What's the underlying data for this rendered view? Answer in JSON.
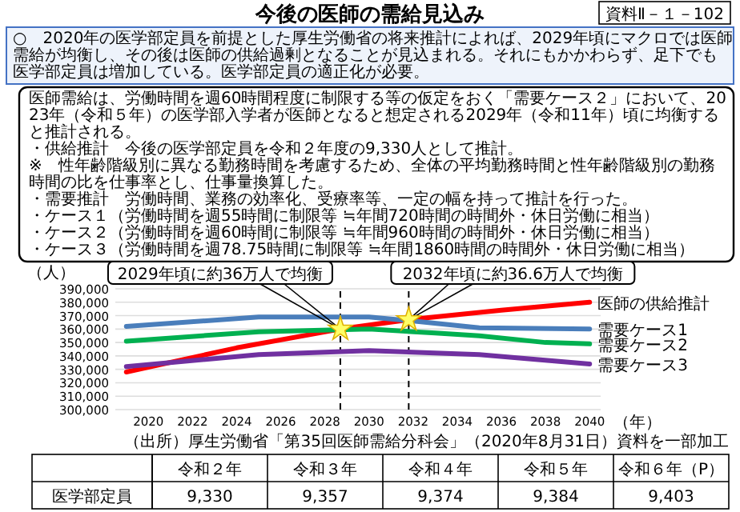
{
  "chart_data": [
    {
      "type": "line",
      "title": "今後の医師の需給見込み",
      "subtitle": "○　2020年の医学部定員を前提とした厚生労働省の将来推計によれば、2029年頃にマクロでは医師需給が均衡し、その後は医師の供給過剰となることが見込まれる。それにもかかわらず、足下でも医学部定員は増加している。医学部定員の適正化が必要。",
      "annotations": [
        "資料Ⅱ－１－102",
        "医師需給は、労働時間を週60時間程度に制限する等の仮定をおく「需要ケース２」において、2023年（令和５年）の医学部入学者が医師となると想定される2029年（令和11年）頃に均衡すると推計される。",
        "・供給推計　今後の医学部定員を令和２年度の9,330人として推計。",
        "※　性年齢階級別に異なる勤務時間を考慮するため、全体の平均勤務時間と性年齢階級別の勤務時間の比を仕事率とし、仕事量換算した。",
        "・需要推計　労働時間、業務の効率化、受療率等、一定の幅を持って推計を行った。",
        "・ケース１（労働時間を週55時間に制限等 ≒年間720時間の時間外・休日労働に相当）",
        "・ケース２（労働時間を週60時間に制限等 ≒年間960時間の時間外・休日労働に相当）",
        "・ケース３（労働時間を週78.75時間に制限等 ≒年間1860時間の時間外・休日労働に相当）",
        "（出所）厚生労働省「第35回医師需給分科会」（2020年8月31日）資料を一部加工",
        {
          "text": "2029年頃に約36万人で均衡",
          "x": 2028.7,
          "y": 360000
        },
        {
          "text": "2032年頃に約36.6万人で均衡",
          "x": 2031.8,
          "y": 367000
        }
      ],
      "xlabel": "（年）",
      "ylabel": "（人）",
      "xlim": [
        2018.5,
        2040.5
      ],
      "xticks": [
        2020,
        2022,
        2024,
        2026,
        2028,
        2030,
        2032,
        2034,
        2036,
        2038,
        2040
      ],
      "ylim": [
        300000,
        390000
      ],
      "yticks": [
        {
          "value": 300000,
          "label": "300,000"
        },
        {
          "value": 310000,
          "label": "310,000"
        },
        {
          "value": 320000,
          "label": "320,000"
        },
        {
          "value": 330000,
          "label": "330,000"
        },
        {
          "value": 340000,
          "label": "340,000"
        },
        {
          "value": 350000,
          "label": "350,000"
        },
        {
          "value": 360000,
          "label": "360,000"
        },
        {
          "value": 370000,
          "label": "370,000"
        },
        {
          "value": 380000,
          "label": "380,000"
        },
        {
          "value": 390000,
          "label": "390,000"
        }
      ],
      "grid": "y",
      "ref_lines": [
        {
          "axis": "x",
          "value": 2028.7,
          "line_style": "dashed"
        },
        {
          "axis": "x",
          "value": 2031.8,
          "line_style": "dashed"
        }
      ],
      "series": [
        {
          "name": "医師の供給推計",
          "color": "#ff0000",
          "x": [
            2019,
            2024,
            2028.7,
            2031.8,
            2036,
            2040
          ],
          "values": [
            328000,
            346000,
            360000,
            367000,
            374000,
            380000
          ]
        },
        {
          "name": "需要ケース1",
          "color": "#4a7ebb",
          "x": [
            2019,
            2025,
            2030,
            2032,
            2035,
            2040
          ],
          "values": [
            362000,
            369000,
            369000,
            366000,
            361000,
            360000
          ]
        },
        {
          "name": "需要ケース2",
          "color": "#00b050",
          "x": [
            2019,
            2025,
            2030,
            2033,
            2035,
            2038,
            2040
          ],
          "values": [
            351000,
            358000,
            360000,
            357000,
            355000,
            350000,
            349000
          ]
        },
        {
          "name": "需要ケース3",
          "color": "#7030a0",
          "x": [
            2019,
            2025,
            2030,
            2035,
            2040
          ],
          "values": [
            332000,
            341000,
            344000,
            341000,
            334000
          ]
        }
      ]
    },
    {
      "type": "other",
      "ylabel": "医学部定員",
      "categories": [
        "令和２年",
        "令和３年",
        "令和４年",
        "令和５年",
        "令和６年（P）"
      ],
      "value_labels": [
        "9,330",
        "9,357",
        "9,374",
        "9,384",
        "9,403"
      ]
    }
  ]
}
